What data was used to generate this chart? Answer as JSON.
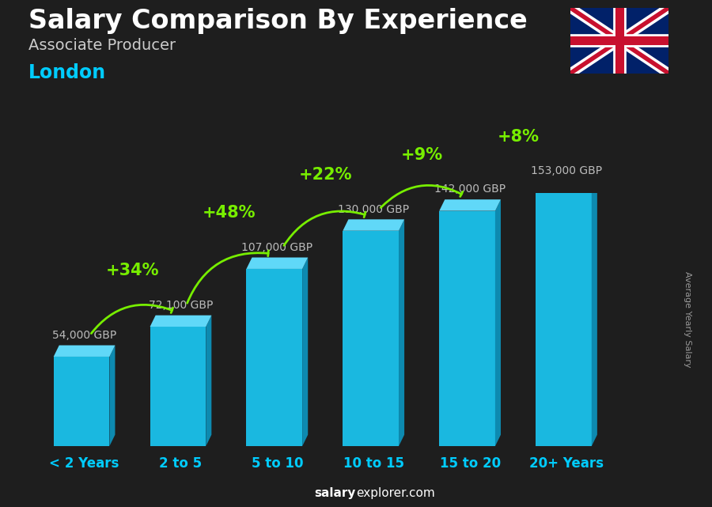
{
  "title": "Salary Comparison By Experience",
  "subtitle": "Associate Producer",
  "city": "London",
  "ylabel": "Average Yearly Salary",
  "watermark_bold": "salary",
  "watermark_normal": "explorer.com",
  "categories": [
    "< 2 Years",
    "2 to 5",
    "5 to 10",
    "10 to 15",
    "15 to 20",
    "20+ Years"
  ],
  "values": [
    54000,
    72100,
    107000,
    130000,
    142000,
    153000
  ],
  "value_labels": [
    "54,000 GBP",
    "72,100 GBP",
    "107,000 GBP",
    "130,000 GBP",
    "142,000 GBP",
    "153,000 GBP"
  ],
  "pct_changes": [
    "+34%",
    "+48%",
    "+22%",
    "+9%",
    "+8%"
  ],
  "face_color": "#1ab8e0",
  "side_color": "#0d8ab0",
  "top_color": "#60d8f8",
  "bg_color": "#1e1e1e",
  "title_color": "#ffffff",
  "subtitle_color": "#cccccc",
  "city_color": "#00ccff",
  "label_color": "#bbbbbb",
  "pct_color": "#77ee00",
  "arrow_color": "#77ee00",
  "category_color": "#00ccff",
  "ylabel_color": "#999999",
  "watermark_color": "#ffffff",
  "title_fontsize": 24,
  "subtitle_fontsize": 14,
  "city_fontsize": 17,
  "value_fontsize": 10,
  "pct_fontsize": 15,
  "cat_fontsize": 12,
  "ylabel_fontsize": 8
}
